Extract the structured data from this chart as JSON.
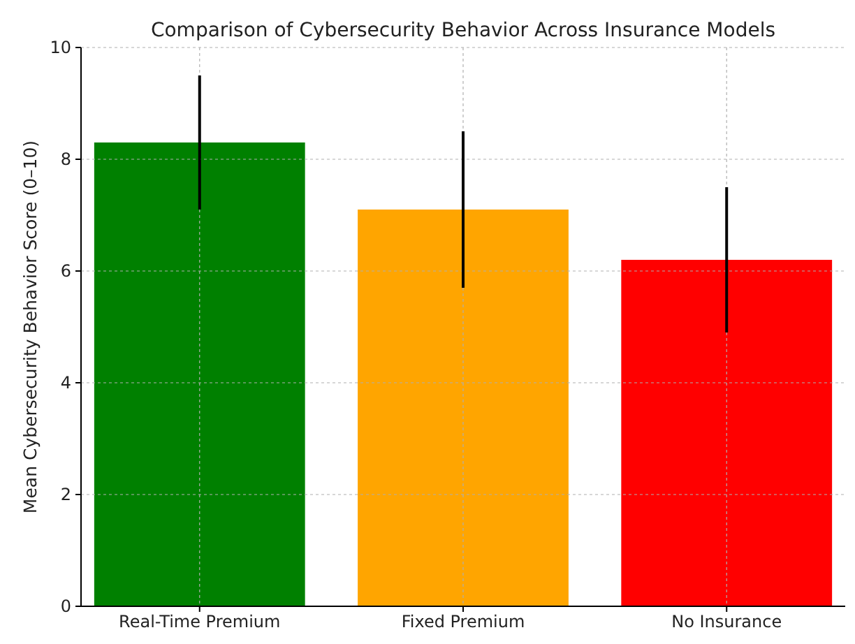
{
  "chart_data": {
    "type": "bar",
    "title": "Comparison of Cybersecurity Behavior Across Insurance Models",
    "ylabel": "Mean Cybersecurity Behavior Score (0–10)",
    "categories": [
      "Real-Time Premium",
      "Fixed Premium",
      "No Insurance"
    ],
    "values": [
      8.3,
      7.1,
      6.2
    ],
    "colors": [
      "#008000",
      "#ffa500",
      "#ff0000"
    ],
    "errors": [
      1.2,
      1.4,
      1.3
    ],
    "ylim": [
      0,
      10
    ],
    "yticks": [
      0,
      2,
      4,
      6,
      8,
      10
    ],
    "grid": true
  }
}
